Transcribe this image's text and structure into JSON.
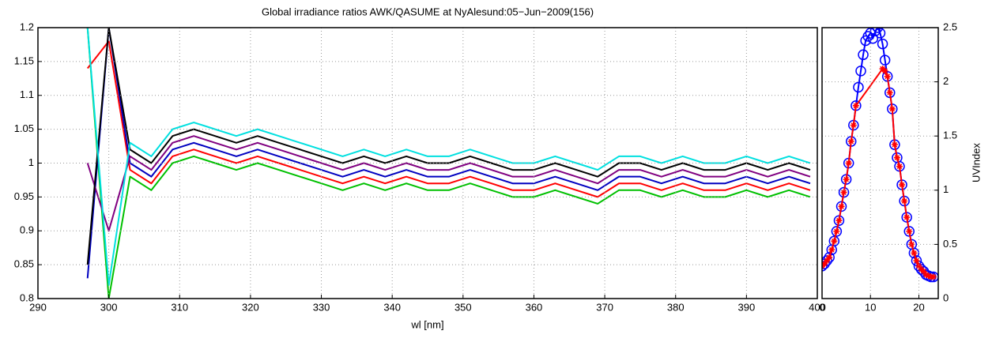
{
  "chart_data": [
    {
      "type": "line",
      "title": "Global irradiance ratios AWK/QASUME at NyAlesund:05−Jun−2009(156)",
      "x_label": "wl [nm]",
      "xlim": [
        290,
        400
      ],
      "xticks": [
        290,
        300,
        310,
        320,
        330,
        340,
        350,
        360,
        370,
        380,
        390,
        400
      ],
      "ylim": [
        0.8,
        1.2
      ],
      "yticks": [
        0.8,
        0.85,
        0.9,
        0.95,
        1,
        1.05,
        1.1,
        1.15,
        1.2
      ],
      "grid": true,
      "y_axis_side": "left",
      "x": [
        297,
        300,
        303,
        306,
        309,
        312,
        315,
        318,
        321,
        324,
        327,
        330,
        333,
        336,
        339,
        342,
        345,
        348,
        351,
        354,
        357,
        360,
        363,
        366,
        369,
        372,
        375,
        378,
        381,
        384,
        387,
        390,
        393,
        396,
        399
      ],
      "series": [
        {
          "color": "#00c000",
          "marker": "none",
          "values": [
            1.2,
            0.8,
            0.98,
            0.96,
            1.0,
            1.01,
            1.0,
            0.99,
            1.0,
            0.99,
            0.98,
            0.97,
            0.96,
            0.97,
            0.96,
            0.97,
            0.96,
            0.96,
            0.97,
            0.96,
            0.95,
            0.95,
            0.96,
            0.95,
            0.94,
            0.96,
            0.96,
            0.95,
            0.96,
            0.95,
            0.95,
            0.96,
            0.95,
            0.96,
            0.95
          ]
        },
        {
          "color": "#ff0000",
          "marker": "none",
          "values": [
            1.14,
            1.18,
            0.99,
            0.97,
            1.01,
            1.02,
            1.01,
            1.0,
            1.01,
            1.0,
            0.99,
            0.98,
            0.97,
            0.98,
            0.97,
            0.98,
            0.97,
            0.97,
            0.98,
            0.97,
            0.96,
            0.96,
            0.97,
            0.96,
            0.95,
            0.97,
            0.97,
            0.96,
            0.97,
            0.96,
            0.96,
            0.97,
            0.96,
            0.97,
            0.96
          ]
        },
        {
          "color": "#0000c0",
          "marker": "none",
          "values": [
            0.83,
            1.2,
            1.0,
            0.98,
            1.02,
            1.03,
            1.02,
            1.01,
            1.02,
            1.01,
            1.0,
            0.99,
            0.98,
            0.99,
            0.98,
            0.99,
            0.98,
            0.98,
            0.99,
            0.98,
            0.97,
            0.97,
            0.98,
            0.97,
            0.96,
            0.98,
            0.98,
            0.97,
            0.98,
            0.97,
            0.97,
            0.98,
            0.97,
            0.98,
            0.97
          ]
        },
        {
          "color": "#800080",
          "marker": "none",
          "values": [
            1.0,
            0.9,
            1.01,
            0.99,
            1.03,
            1.04,
            1.03,
            1.02,
            1.03,
            1.02,
            1.01,
            1.0,
            0.99,
            1.0,
            0.99,
            1.0,
            0.99,
            0.99,
            1.0,
            0.99,
            0.98,
            0.98,
            0.99,
            0.98,
            0.97,
            0.99,
            0.99,
            0.98,
            0.99,
            0.98,
            0.98,
            0.99,
            0.98,
            0.99,
            0.98
          ]
        },
        {
          "color": "#000000",
          "marker": "none",
          "values": [
            0.85,
            1.2,
            1.02,
            1.0,
            1.04,
            1.05,
            1.04,
            1.03,
            1.04,
            1.03,
            1.02,
            1.01,
            1.0,
            1.01,
            1.0,
            1.01,
            1.0,
            1.0,
            1.01,
            1.0,
            0.99,
            0.99,
            1.0,
            0.99,
            0.98,
            1.0,
            1.0,
            0.99,
            1.0,
            0.99,
            0.99,
            1.0,
            0.99,
            1.0,
            0.99
          ]
        },
        {
          "color": "#00e0e0",
          "marker": "none",
          "values": [
            1.2,
            0.82,
            1.03,
            1.01,
            1.05,
            1.06,
            1.05,
            1.04,
            1.05,
            1.04,
            1.03,
            1.02,
            1.01,
            1.02,
            1.01,
            1.02,
            1.01,
            1.01,
            1.02,
            1.01,
            1.0,
            1.0,
            1.01,
            1.0,
            0.99,
            1.01,
            1.01,
            1.0,
            1.01,
            1.0,
            1.0,
            1.01,
            1.0,
            1.01,
            1.0
          ]
        }
      ]
    },
    {
      "type": "line",
      "y_label": "UVIndex",
      "xlim": [
        0,
        24
      ],
      "xticks": [
        0,
        10,
        20
      ],
      "ylim": [
        0,
        2.5
      ],
      "yticks": [
        0,
        0.5,
        1,
        1.5,
        2,
        2.5
      ],
      "grid": true,
      "y_axis_side": "right",
      "series": [
        {
          "color": "#0000ff",
          "marker": "circle",
          "x": [
            0,
            0.5,
            1,
            1.5,
            2,
            2.5,
            3,
            3.5,
            4,
            4.5,
            5,
            5.5,
            6,
            6.5,
            7,
            7.5,
            8,
            8.5,
            9,
            9.5,
            10,
            10.5,
            11,
            11.5,
            12,
            12.5,
            13,
            13.5,
            14,
            14.5,
            15,
            15.5,
            16,
            16.5,
            17,
            17.5,
            18,
            18.5,
            19,
            19.5,
            20,
            20.5,
            21,
            21.5,
            22,
            22.5,
            23
          ],
          "values": [
            0.3,
            0.32,
            0.35,
            0.38,
            0.45,
            0.53,
            0.62,
            0.72,
            0.85,
            0.98,
            1.1,
            1.25,
            1.45,
            1.6,
            1.78,
            1.95,
            2.1,
            2.25,
            2.38,
            2.42,
            2.45,
            2.4,
            2.47,
            2.5,
            2.45,
            2.35,
            2.2,
            2.05,
            1.9,
            1.75,
            1.42,
            1.3,
            1.22,
            1.05,
            0.9,
            0.75,
            0.62,
            0.5,
            0.42,
            0.35,
            0.3,
            0.27,
            0.25,
            0.22,
            0.21,
            0.2,
            0.2
          ]
        },
        {
          "color": "#ff0000",
          "marker": "star",
          "x": [
            0,
            0.5,
            1,
            1.5,
            2,
            2.5,
            3,
            3.5,
            4,
            4.5,
            5,
            5.5,
            6,
            6.5,
            7,
            12.5,
            13,
            13.5,
            14,
            14.5,
            15,
            15.5,
            16,
            16.5,
            17,
            17.5,
            18,
            18.5,
            19,
            19.5,
            20,
            20.5,
            21,
            21.5,
            22,
            22.5,
            23
          ],
          "values": [
            0.3,
            0.32,
            0.35,
            0.38,
            0.45,
            0.53,
            0.62,
            0.72,
            0.85,
            0.98,
            1.1,
            1.25,
            1.45,
            1.6,
            1.78,
            2.12,
            2.1,
            2.05,
            1.9,
            1.75,
            1.42,
            1.3,
            1.22,
            1.05,
            0.9,
            0.75,
            0.62,
            0.5,
            0.42,
            0.35,
            0.3,
            0.27,
            0.25,
            0.22,
            0.21,
            0.2,
            0.2
          ]
        }
      ]
    }
  ]
}
